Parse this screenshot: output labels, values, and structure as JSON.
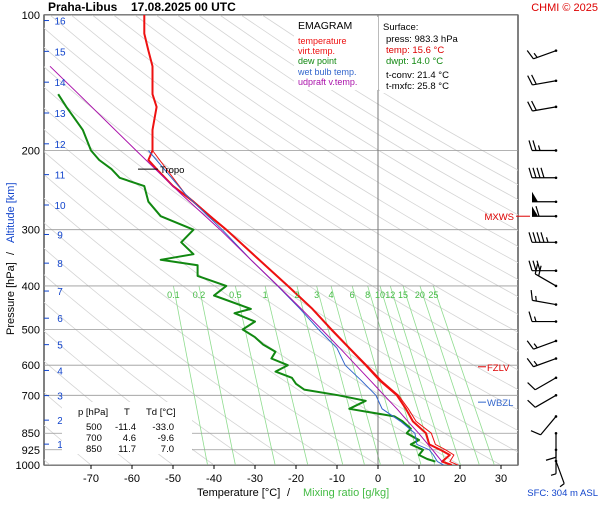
{
  "header": {
    "station": "Praha-Libus",
    "datetime": "17.08.2025 00 UTC",
    "credit": "CHMI © 2025"
  },
  "legend": {
    "title": "EMAGRAM",
    "items": [
      {
        "label": "temperature",
        "color": "#ee1111"
      },
      {
        "label": "virt.temp.",
        "color": "#ee1111"
      },
      {
        "label": "dew point",
        "color": "#118811"
      },
      {
        "label": "wet bulb temp.",
        "color": "#3366cc"
      },
      {
        "label": "udpraft v.temp.",
        "color": "#aa11aa"
      }
    ]
  },
  "surface": {
    "title": "Surface:",
    "press": "press: 983.3 hPa",
    "temp": "temp: 15.6 °C",
    "dwpt": "dwpt: 14.0 °C",
    "tconv": "t-conv: 21.4 °C",
    "tmxfc": "t-mxfc: 25.8 °C"
  },
  "table": {
    "headers": [
      "p [hPa]",
      "T",
      "Td [°C]"
    ],
    "rows": [
      [
        "500",
        "-11.4",
        "-33.0"
      ],
      [
        "700",
        "4.6",
        "-9.6"
      ],
      [
        "850",
        "11.7",
        "7.0"
      ]
    ]
  },
  "axes": {
    "xlabel_temp": "Temperature [°C]",
    "xlabel_sep": "/",
    "xlabel_mix": "Mixing ratio [g/kg]",
    "ylabel_pressure": "Pressure [hPa]",
    "ylabel_sep": "/",
    "ylabel_alt": "Altitude [km]",
    "sfc": "SFC: 304 m ASL"
  },
  "markers": {
    "tropo": "Tropo",
    "mxws": "MXWS",
    "fzlv": "FZLV",
    "wbzl": "WBZL"
  },
  "chart_data": {
    "type": "line",
    "title": "EMAGRAM",
    "xlabel": "Temperature [°C]",
    "ylabel": "Pressure [hPa]",
    "xlim": [
      -80,
      35
    ],
    "ylim": [
      1000,
      100
    ],
    "y_scale": "log",
    "x_ticks": [
      -70,
      -60,
      -50,
      -40,
      -30,
      -20,
      -10,
      0,
      10,
      20,
      30
    ],
    "pressure_ticks": [
      100,
      200,
      300,
      400,
      500,
      600,
      700,
      850,
      925,
      1000
    ],
    "altitude_ticks_km": [
      1,
      2,
      3,
      4,
      5,
      6,
      7,
      8,
      9,
      10,
      11,
      12,
      13,
      14,
      15,
      16
    ],
    "mixing_ratio_labels": [
      "0.1",
      "0.2",
      "0.5",
      "1",
      "2",
      "3",
      "4",
      "6",
      "8",
      "10",
      "12",
      "15",
      "20",
      "25"
    ],
    "grid": true,
    "series": [
      {
        "name": "temperature",
        "color": "#ee1111",
        "points": [
          [
            1000,
            18
          ],
          [
            983,
            15.6
          ],
          [
            950,
            17.5
          ],
          [
            925,
            15.2
          ],
          [
            900,
            12.5
          ],
          [
            850,
            11.7
          ],
          [
            800,
            8.5
          ],
          [
            750,
            6.8
          ],
          [
            700,
            4.6
          ],
          [
            650,
            0.5
          ],
          [
            600,
            -3
          ],
          [
            550,
            -7
          ],
          [
            500,
            -11.4
          ],
          [
            450,
            -16
          ],
          [
            400,
            -22
          ],
          [
            350,
            -29
          ],
          [
            300,
            -37
          ],
          [
            280,
            -41
          ],
          [
            260,
            -45
          ],
          [
            240,
            -50
          ],
          [
            220,
            -54
          ],
          [
            210,
            -56
          ],
          [
            200,
            -55
          ],
          [
            180,
            -55
          ],
          [
            160,
            -54
          ],
          [
            150,
            -55
          ],
          [
            140,
            -55
          ],
          [
            130,
            -55
          ],
          [
            120,
            -56
          ],
          [
            110,
            -57
          ],
          [
            100,
            -57
          ]
        ]
      },
      {
        "name": "virt.temp.",
        "color": "#ee1111",
        "points": [
          [
            1000,
            19.5
          ],
          [
            983,
            17.5
          ],
          [
            950,
            18.5
          ],
          [
            925,
            16.5
          ],
          [
            900,
            14
          ],
          [
            850,
            13
          ],
          [
            800,
            9.3
          ],
          [
            750,
            7.4
          ],
          [
            700,
            5
          ],
          [
            650,
            0.9
          ],
          [
            600,
            -2.7
          ],
          [
            550,
            -6.8
          ],
          [
            500,
            -11.2
          ],
          [
            450,
            -15.9
          ],
          [
            400,
            -21.9
          ],
          [
            350,
            -28.9
          ],
          [
            300,
            -36.9
          ],
          [
            250,
            -47
          ],
          [
            200,
            -55
          ]
        ]
      },
      {
        "name": "dew point",
        "color": "#118811",
        "points": [
          [
            983,
            14
          ],
          [
            970,
            12
          ],
          [
            950,
            10
          ],
          [
            925,
            11
          ],
          [
            900,
            8
          ],
          [
            880,
            10
          ],
          [
            850,
            7
          ],
          [
            830,
            8
          ],
          [
            800,
            6
          ],
          [
            780,
            4
          ],
          [
            750,
            -7
          ],
          [
            720,
            -3
          ],
          [
            700,
            -9.6
          ],
          [
            680,
            -18
          ],
          [
            660,
            -20
          ],
          [
            640,
            -21
          ],
          [
            620,
            -25
          ],
          [
            600,
            -22
          ],
          [
            580,
            -26
          ],
          [
            560,
            -25
          ],
          [
            540,
            -28
          ],
          [
            520,
            -30
          ],
          [
            500,
            -33
          ],
          [
            480,
            -30
          ],
          [
            460,
            -35
          ],
          [
            450,
            -31
          ],
          [
            420,
            -40
          ],
          [
            400,
            -37
          ],
          [
            380,
            -44
          ],
          [
            360,
            -44
          ],
          [
            350,
            -53
          ],
          [
            340,
            -45
          ],
          [
            320,
            -48
          ],
          [
            300,
            -45
          ],
          [
            280,
            -53
          ],
          [
            260,
            -56
          ],
          [
            240,
            -57
          ],
          [
            230,
            -63
          ],
          [
            220,
            -65
          ],
          [
            210,
            -68
          ],
          [
            200,
            -70
          ],
          [
            180,
            -72
          ],
          [
            160,
            -76
          ],
          [
            150,
            -78
          ]
        ]
      },
      {
        "name": "wet bulb temp.",
        "color": "#3366cc",
        "points": [
          [
            1000,
            16
          ],
          [
            983,
            14.5
          ],
          [
            950,
            13.5
          ],
          [
            925,
            12.5
          ],
          [
            900,
            9.5
          ],
          [
            850,
            9
          ],
          [
            800,
            5.5
          ],
          [
            750,
            1
          ],
          [
            700,
            -0.5
          ],
          [
            650,
            -4
          ],
          [
            600,
            -8
          ],
          [
            550,
            -10
          ],
          [
            500,
            -14.5
          ],
          [
            450,
            -19
          ],
          [
            400,
            -24.5
          ],
          [
            350,
            -31
          ],
          [
            300,
            -38
          ],
          [
            250,
            -47
          ],
          [
            200,
            -56
          ]
        ]
      },
      {
        "name": "udpraft v.temp.",
        "color": "#aa11aa",
        "points": [
          [
            983,
            15.6
          ],
          [
            950,
            14.3
          ],
          [
            925,
            13.3
          ],
          [
            900,
            12.2
          ],
          [
            850,
            9.9
          ],
          [
            800,
            7.3
          ],
          [
            750,
            4.6
          ],
          [
            700,
            1.5
          ],
          [
            650,
            -1.8
          ],
          [
            600,
            -5.4
          ],
          [
            550,
            -9.3
          ],
          [
            500,
            -13.7
          ],
          [
            450,
            -18.7
          ],
          [
            400,
            -24.4
          ],
          [
            350,
            -31
          ],
          [
            300,
            -38.5
          ],
          [
            250,
            -48
          ],
          [
            200,
            -59
          ],
          [
            150,
            -73
          ],
          [
            130,
            -80
          ]
        ]
      }
    ],
    "levels": {
      "tropo_hPa": 220,
      "mxws_hPa": 280,
      "fzlv_hPa": 605,
      "wbzl_hPa": 725
    },
    "wind_barbs": [
      {
        "p": 120,
        "dir": 250,
        "kt": 15
      },
      {
        "p": 140,
        "dir": 260,
        "kt": 20
      },
      {
        "p": 160,
        "dir": 260,
        "kt": 20
      },
      {
        "p": 200,
        "dir": 270,
        "kt": 25
      },
      {
        "p": 230,
        "dir": 270,
        "kt": 40
      },
      {
        "p": 260,
        "dir": 270,
        "kt": 50
      },
      {
        "p": 280,
        "dir": 270,
        "kt": 60
      },
      {
        "p": 320,
        "dir": 270,
        "kt": 45
      },
      {
        "p": 370,
        "dir": 270,
        "kt": 30
      },
      {
        "p": 400,
        "dir": 300,
        "kt": 20
      },
      {
        "p": 440,
        "dir": 280,
        "kt": 15
      },
      {
        "p": 480,
        "dir": 270,
        "kt": 15
      },
      {
        "p": 530,
        "dir": 250,
        "kt": 15
      },
      {
        "p": 580,
        "dir": 250,
        "kt": 15
      },
      {
        "p": 640,
        "dir": 240,
        "kt": 10
      },
      {
        "p": 700,
        "dir": 240,
        "kt": 10
      },
      {
        "p": 780,
        "dir": 220,
        "kt": 10
      },
      {
        "p": 850,
        "dir": 180,
        "kt": 10
      },
      {
        "p": 925,
        "dir": 180,
        "kt": 5
      },
      {
        "p": 980,
        "dir": 160,
        "kt": 5
      }
    ]
  }
}
